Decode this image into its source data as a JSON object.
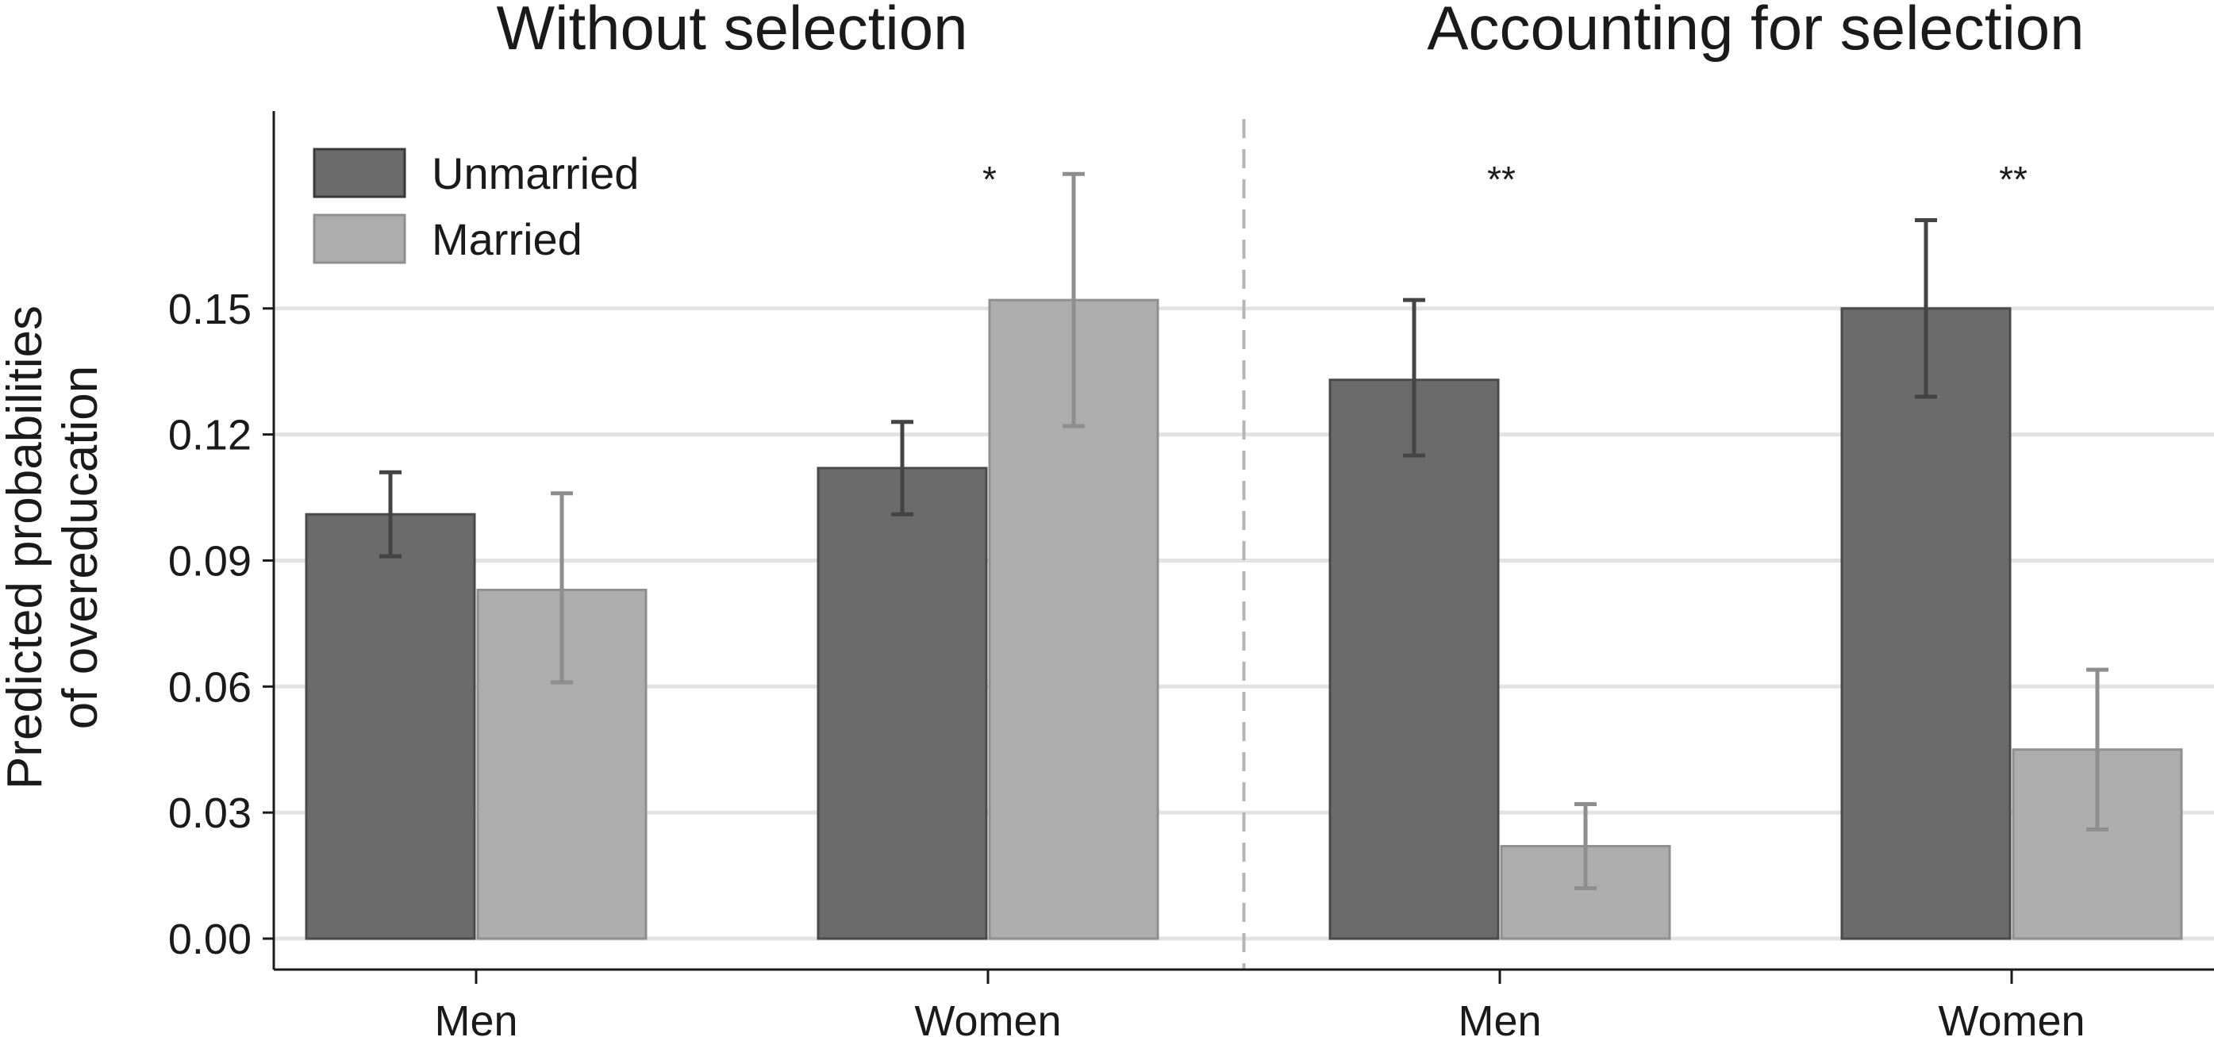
{
  "chart_data": {
    "type": "bar",
    "ylabel": [
      "Predicted probabilities",
      "of overeducation"
    ],
    "ylim": [
      0,
      0.195
    ],
    "yticks": [
      "0.00",
      "0.03",
      "0.06",
      "0.09",
      "0.12",
      "0.15"
    ],
    "grid": true,
    "legend_position": "top-left",
    "colors": {
      "Unmarried": "#6b6b6b",
      "Married": "#adadad",
      "Unmarried_error": "#444444",
      "Married_error": "#8e8e8e"
    },
    "series_names": [
      "Unmarried",
      "Married"
    ],
    "panels": [
      {
        "title": "Without selection",
        "groups": [
          {
            "category": "Men",
            "significance": "",
            "bars": [
              {
                "series": "Unmarried",
                "value": 0.101,
                "ci": [
                  0.091,
                  0.111
                ]
              },
              {
                "series": "Married",
                "value": 0.083,
                "ci": [
                  0.061,
                  0.106
                ]
              }
            ]
          },
          {
            "category": "Women",
            "significance": "*",
            "bars": [
              {
                "series": "Unmarried",
                "value": 0.112,
                "ci": [
                  0.101,
                  0.123
                ]
              },
              {
                "series": "Married",
                "value": 0.152,
                "ci": [
                  0.122,
                  0.182
                ]
              }
            ]
          }
        ]
      },
      {
        "title": "Accounting for selection",
        "groups": [
          {
            "category": "Men",
            "significance": "**",
            "bars": [
              {
                "series": "Unmarried",
                "value": 0.133,
                "ci": [
                  0.115,
                  0.152
                ]
              },
              {
                "series": "Married",
                "value": 0.022,
                "ci": [
                  0.012,
                  0.032
                ]
              }
            ]
          },
          {
            "category": "Women",
            "significance": "**",
            "bars": [
              {
                "series": "Unmarried",
                "value": 0.15,
                "ci": [
                  0.129,
                  0.171
                ]
              },
              {
                "series": "Married",
                "value": 0.045,
                "ci": [
                  0.026,
                  0.064
                ]
              }
            ]
          }
        ]
      }
    ]
  }
}
